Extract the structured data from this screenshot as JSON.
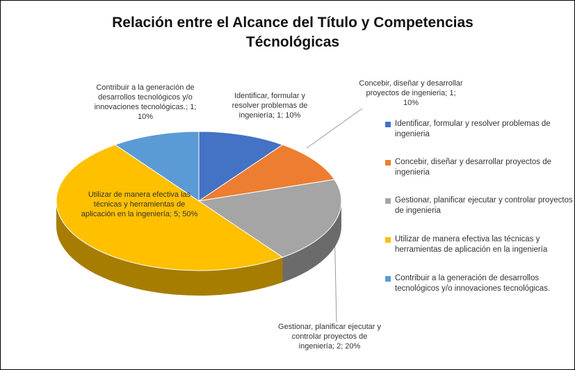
{
  "chart_data": {
    "type": "pie",
    "title": "Relación entre el Alcance del Título y Competencias Técnológicas",
    "categories": [
      "Identificar, formular y resolver problemas de ingenieria",
      "Concebir, diseñar y desarrollar proyectos de ingenieria",
      "Gestionar, planificar ejecutar y controlar proyectos de ingenieria",
      "Utilizar de manera efectiva las técnicas y herramientas de aplicación en la ingeniería",
      "Contribuir a la generación de desarrollos tecnológicos y/o innovaciones tecnológicas."
    ],
    "values": [
      1,
      1,
      2,
      5,
      1
    ],
    "value_labels": [
      "Identificar, formular y resolver problemas de ingeniería; 1; 10%",
      "Concebir, diseñar y desarrollar proyectos de ingenieria; 1; 10%",
      "Gestionar, planificar ejecutar y controlar proyectos de ingeniería; 2; 20%",
      "Utilizar de manera efectiva las técnicas y herramientas de aplicación en la ingeniería; 5; 50%",
      "Contribuir a la generación de desarrollos tecnológicos y/o innovaciones tecnológicas.; 1; 10%"
    ],
    "colors": [
      "#4472c4",
      "#ed7d31",
      "#a5a5a5",
      "#ffc000",
      "#5b9bd5"
    ],
    "legend": "right"
  }
}
